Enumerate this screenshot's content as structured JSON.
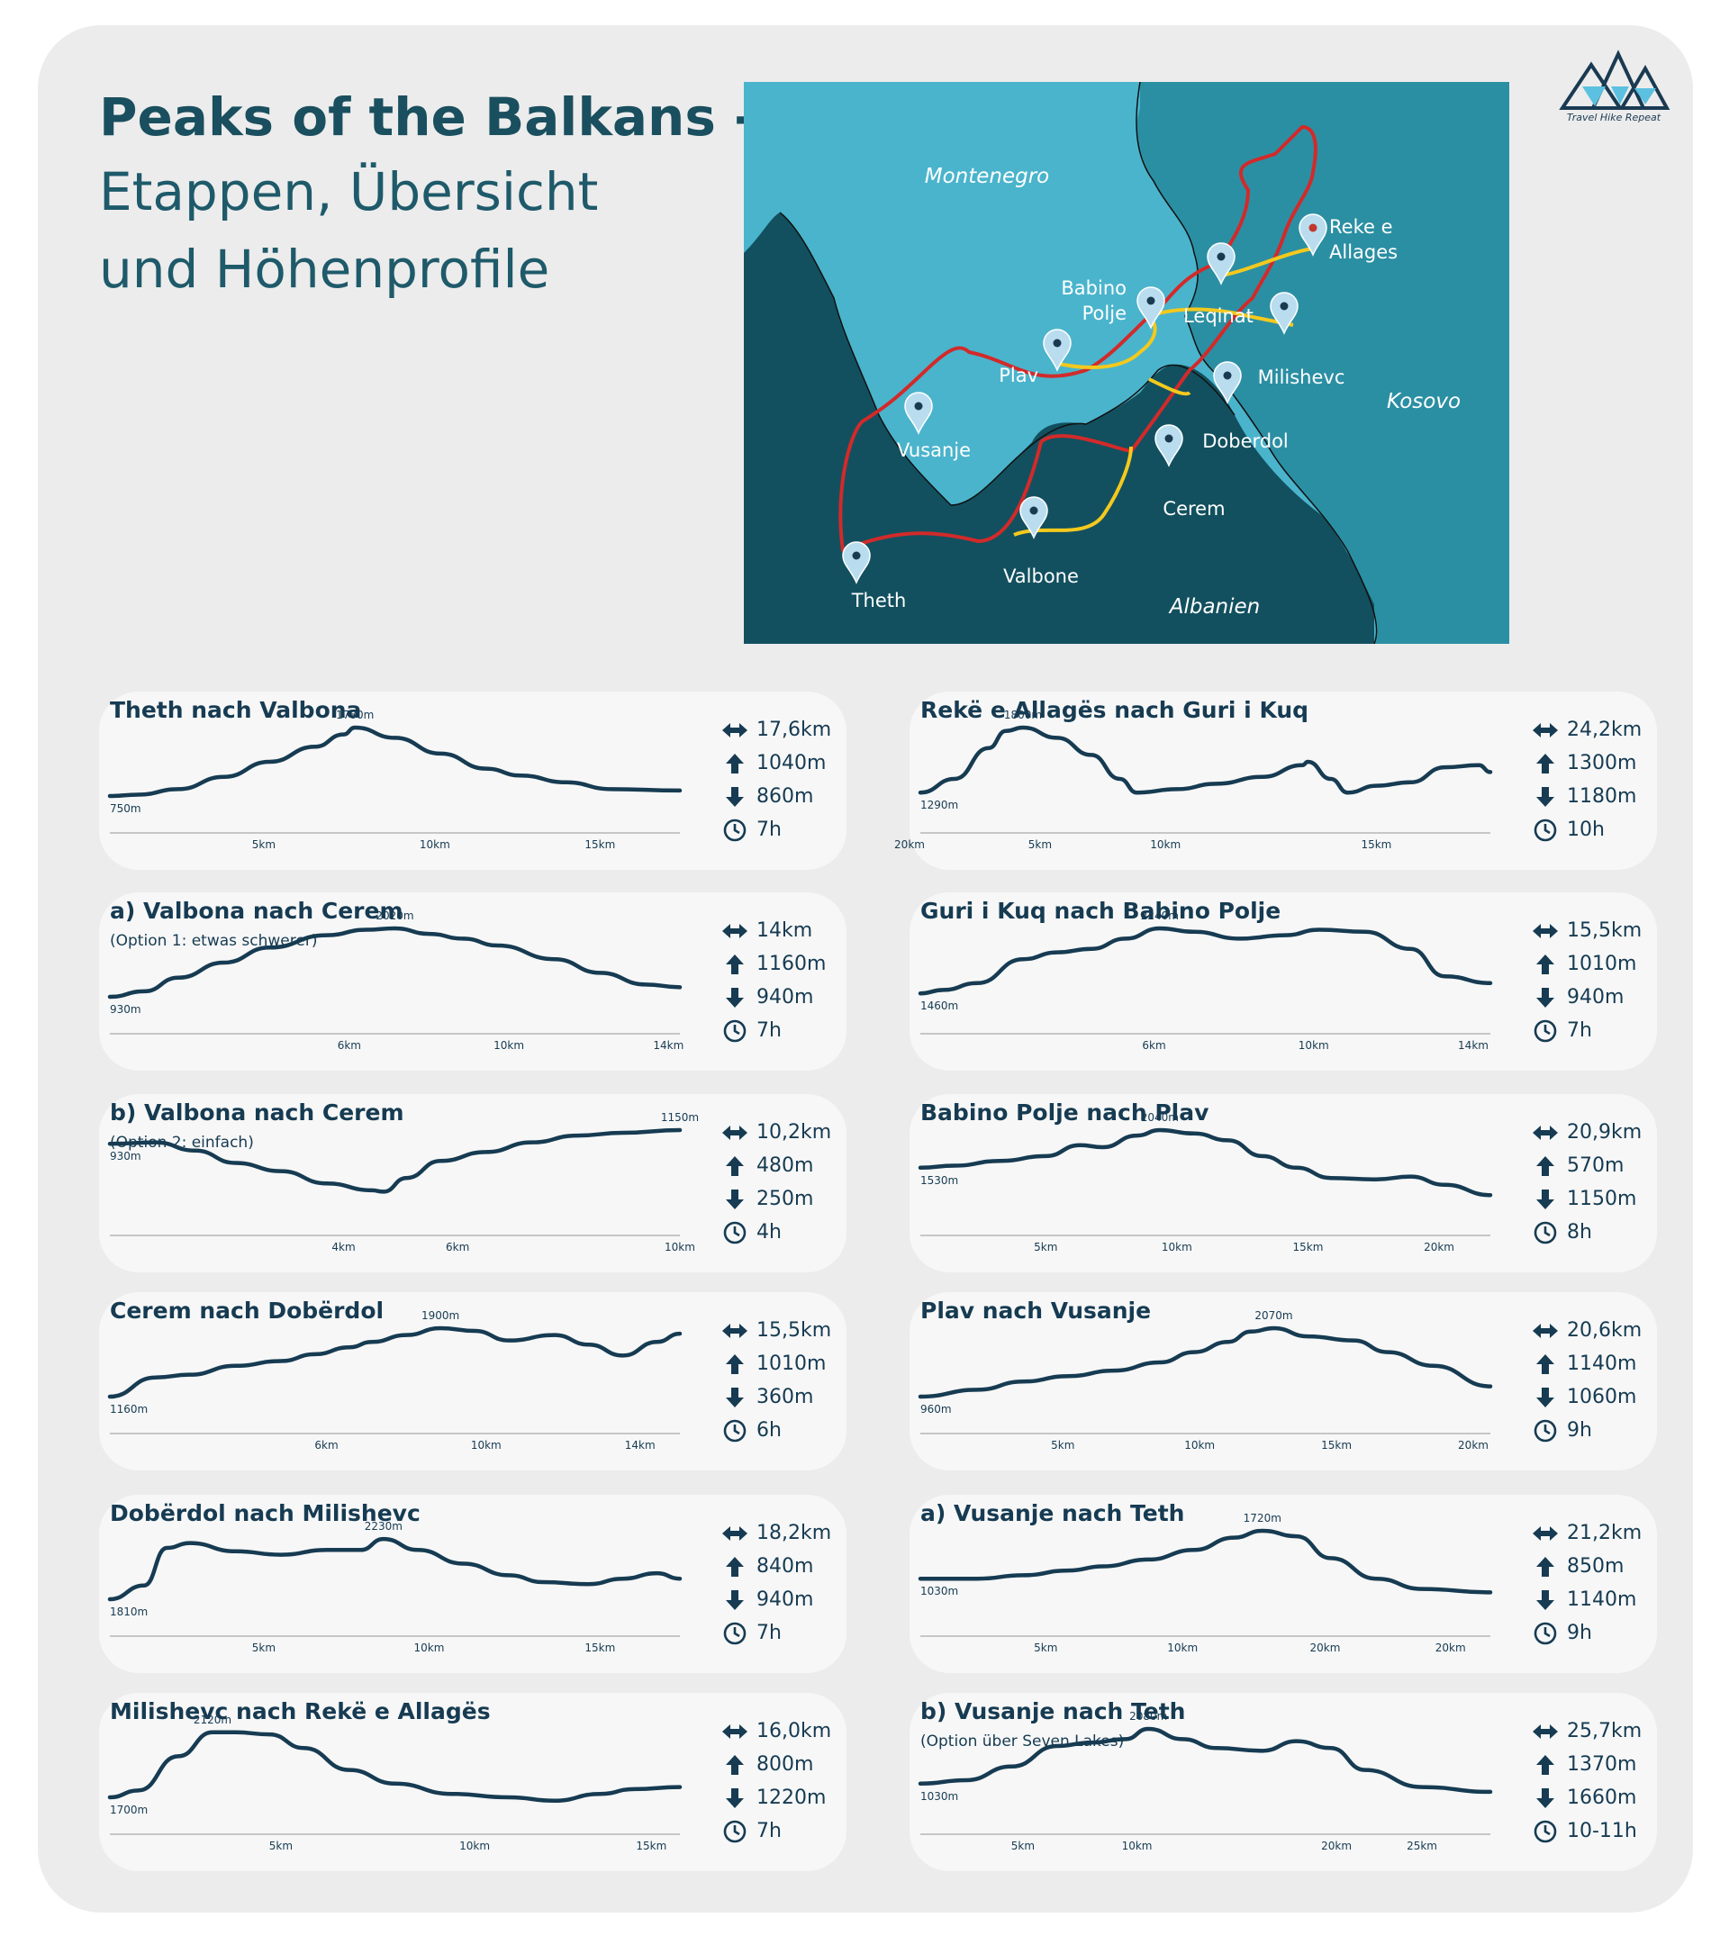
{
  "title": {
    "line1": "Peaks of the Balkans -",
    "line2": "Etappen, Übersicht",
    "line3": "und Höhenprofile"
  },
  "logo": {
    "text": "Travel Hike Repeat",
    "icon": "mountain-logo-icon"
  },
  "map": {
    "countries": {
      "montenegro": "Montenegro",
      "kosovo": "Kosovo",
      "albanien": "Albanien"
    },
    "places": {
      "reke": "Reke e Allages",
      "leqinat": "Leqinat",
      "babino": "Babino Polje",
      "plav": "Plav",
      "milishevc": "Milishevc",
      "doberdol": "Doberdol",
      "vusanje": "Vusanje",
      "cerem": "Cerem",
      "valbone": "Valbone",
      "theth": "Theth"
    },
    "colors": {
      "montenegro": "#4ab4cc",
      "kosovo": "#2b8fa3",
      "albanien": "#12505f",
      "route_main": "#d22a2a",
      "route_alt": "#f4c91d",
      "pin": "#b9ddef"
    }
  },
  "stat_icons": {
    "distance": "horizontal-arrow-icon",
    "up": "up-arrow-icon",
    "down": "down-arrow-icon",
    "time": "clock-icon"
  },
  "stages": [
    {
      "title": "Theth nach Valbona",
      "subtitle": "",
      "stats": {
        "distance": "17,6km",
        "up": "1040m",
        "down": "860m",
        "time": "7h"
      },
      "start_label": "750m",
      "peak_label": "1780m",
      "ticks": [
        "5km",
        "10km",
        "15km"
      ]
    },
    {
      "title": "Rekë e Allagës nach Guri i Kuq",
      "subtitle": "",
      "stats": {
        "distance": "24,2km",
        "up": "1300m",
        "down": "1180m",
        "time": "10h"
      },
      "start_label": "1290m",
      "peak_label": "1800m",
      "ticks": [
        "5km",
        "10km",
        "15km",
        "20km"
      ]
    },
    {
      "title": "a) Valbona nach Cerem",
      "subtitle": "(Option 1: etwas schwerer)",
      "stats": {
        "distance": "14km",
        "up": "1160m",
        "down": "940m",
        "time": "7h"
      },
      "start_label": "930m",
      "peak_label": "2020m",
      "ticks": [
        "6km",
        "10km",
        "14km"
      ]
    },
    {
      "title": "Guri i Kuq nach Babino Polje",
      "subtitle": "",
      "stats": {
        "distance": "15,5km",
        "up": "1010m",
        "down": "940m",
        "time": "7h"
      },
      "start_label": "1460m",
      "peak_label": "2240m",
      "ticks": [
        "6km",
        "10km",
        "14km"
      ]
    },
    {
      "title": "b) Valbona nach Cerem",
      "subtitle": "(Option 2: einfach)",
      "stats": {
        "distance": "10,2km",
        "up": "480m",
        "down": "250m",
        "time": "4h"
      },
      "start_label": "930m",
      "peak_label": "1150m",
      "ticks": [
        "4km",
        "6km",
        "10km"
      ]
    },
    {
      "title": "Babino Polje nach Plav",
      "subtitle": "",
      "stats": {
        "distance": "20,9km",
        "up": "570m",
        "down": "1150m",
        "time": "8h"
      },
      "start_label": "1530m",
      "peak_label": "2040m",
      "ticks": [
        "5km",
        "10km",
        "15km",
        "20km"
      ]
    },
    {
      "title": "Cerem nach Dobërdol",
      "subtitle": "",
      "stats": {
        "distance": "15,5km",
        "up": "1010m",
        "down": "360m",
        "time": "6h"
      },
      "start_label": "1160m",
      "peak_label": "1900m",
      "ticks": [
        "6km",
        "10km",
        "14km"
      ]
    },
    {
      "title": "Plav nach Vusanje",
      "subtitle": "",
      "stats": {
        "distance": "20,6km",
        "up": "1140m",
        "down": "1060m",
        "time": "9h"
      },
      "start_label": "960m",
      "peak_label": "2070m",
      "ticks": [
        "5km",
        "10km",
        "15km",
        "20km"
      ]
    },
    {
      "title": "Dobërdol nach Milishevc",
      "subtitle": "",
      "stats": {
        "distance": "18,2km",
        "up": "840m",
        "down": "940m",
        "time": "7h"
      },
      "start_label": "1810m",
      "peak_label": "2230m",
      "ticks": [
        "5km",
        "10km",
        "15km"
      ]
    },
    {
      "title": "a) Vusanje nach Teth",
      "subtitle": "",
      "stats": {
        "distance": "21,2km",
        "up": "850m",
        "down": "1140m",
        "time": "9h"
      },
      "start_label": "1030m",
      "peak_label": "1720m",
      "ticks": [
        "5km",
        "10km",
        "20km",
        "20km"
      ]
    },
    {
      "title": "Milishevc nach Rekë e Allagës",
      "subtitle": "",
      "stats": {
        "distance": "16,0km",
        "up": "800m",
        "down": "1220m",
        "time": "7h"
      },
      "start_label": "1700m",
      "peak_label": "2120m",
      "ticks": [
        "5km",
        "10km",
        "15km"
      ]
    },
    {
      "title": "b) Vusanje nach Teth",
      "subtitle": "(Option über Seven Lakes)",
      "stats": {
        "distance": "25,7km",
        "up": "1370m",
        "down": "1660m",
        "time": "10-11h"
      },
      "start_label": "1030m",
      "peak_label": "2080m",
      "ticks": [
        "5km",
        "10km",
        "20km",
        "25km"
      ]
    }
  ]
}
